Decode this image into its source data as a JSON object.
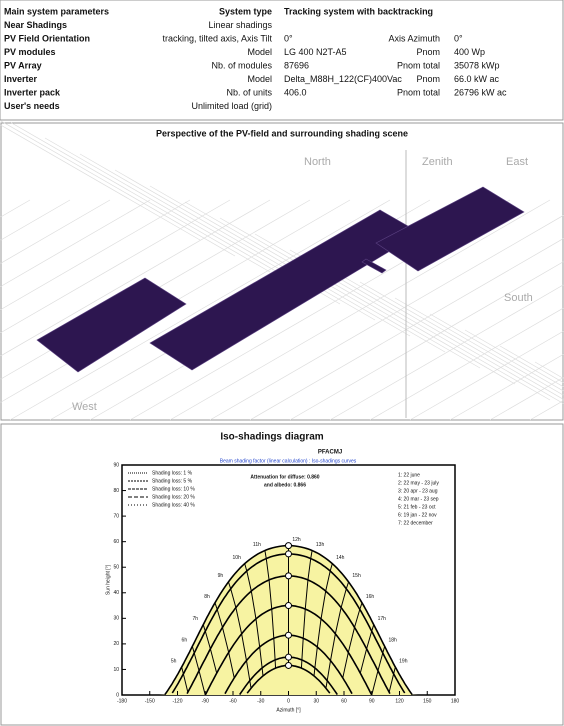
{
  "system_parameters": {
    "rows": [
      [
        "Main system parameters",
        "System type",
        "Tracking system with backtracking"
      ],
      [
        "Near Shadings",
        "Linear shadings"
      ],
      [
        "PV Field Orientation",
        "tracking, tilted axis, Axis Tilt",
        "0°",
        "Axis Azimuth",
        "0°"
      ],
      [
        "PV modules",
        "Model",
        "LG 400 N2T-A5",
        "Pnom",
        "400 Wp"
      ],
      [
        "PV Array",
        "Nb. of modules",
        "87696",
        "Pnom total",
        "35078 kWp"
      ],
      [
        "Inverter",
        "Model",
        "Delta_M88H_122(CF)400Vac",
        "Pnom",
        "66.0 kW ac"
      ],
      [
        "Inverter pack",
        "Nb. of units",
        "406.0",
        "Pnom total",
        "26796 kW ac"
      ],
      [
        "User's needs",
        "Unlimited load (grid)"
      ]
    ]
  },
  "perspective": {
    "title": "Perspective of the PV-field and surrounding shading scene",
    "north": "North",
    "zenith": "Zenith",
    "east": "East",
    "south": "South",
    "west": "West"
  },
  "iso_shading": {
    "title": "Iso-shadings diagram",
    "subtitle": "PFACMJ",
    "beam_note": "Beam shading factor (linear calculation) : Iso-shadings curves",
    "attenuation": [
      "Attenuation for diffuse: 0.860",
      "and albedo: 0.866"
    ],
    "loss_legend": [
      "Shading loss: 1 %",
      "Shading loss: 5 %",
      "Shading loss: 10 %",
      "Shading loss: 20 %",
      "Shading loss: 40 %"
    ],
    "date_legend": [
      "1: 22 june",
      "2: 22 may - 23 july",
      "3: 20 apr - 23 aug",
      "4: 20 mar - 23 sep",
      "5: 21 feb - 23 oct",
      "6: 19 jan - 22 nov",
      "7: 22 december"
    ],
    "hours": [
      "5h",
      "6h",
      "7h",
      "8h",
      "9h",
      "10h",
      "11h",
      "12h",
      "13h",
      "14h",
      "15h",
      "16h",
      "17h",
      "18h",
      "19h"
    ],
    "x_label": "Azimuth [°]",
    "y_label": "Sun height [°]",
    "xticks": [
      -180,
      -150,
      -120,
      -90,
      -60,
      -30,
      0,
      30,
      60,
      90,
      120,
      150,
      180
    ],
    "yticks": [
      0,
      10,
      20,
      30,
      40,
      50,
      60,
      70,
      80,
      90
    ]
  }
}
